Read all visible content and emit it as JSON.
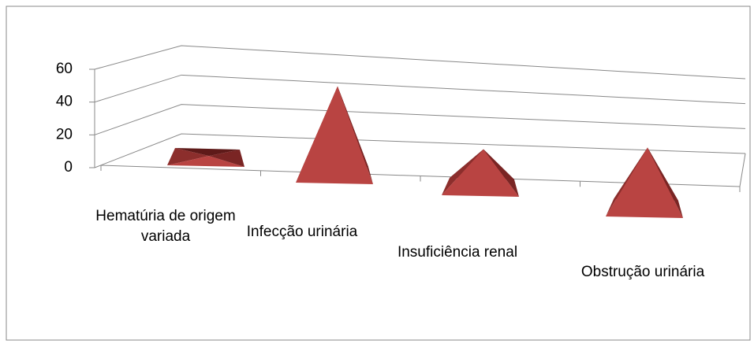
{
  "chart_data": {
    "type": "pyramid",
    "categories": [
      "Hematúria de origem variada",
      "Infecção urinária",
      "Insuficiência renal",
      "Obstrução urinária"
    ],
    "values": [
      1,
      58,
      25,
      40
    ],
    "color": "#b94442",
    "ylim": [
      0,
      60
    ],
    "yticks": [
      0,
      20,
      40,
      60
    ],
    "grid": true
  }
}
